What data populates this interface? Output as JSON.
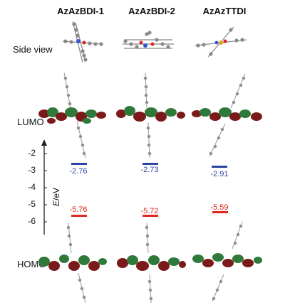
{
  "header": {
    "columns": [
      "AzAzBDI-1",
      "AzAzBDI-2",
      "AzAzTTDI"
    ]
  },
  "rows": {
    "side_view": "Side view",
    "lumo": "LUMO",
    "homo": "HOMO"
  },
  "axis": {
    "label_italic": "E",
    "label_rest": "/eV",
    "ticks": [
      "-2",
      "-3",
      "-4",
      "-5",
      "-6"
    ]
  },
  "energies": {
    "lumo": [
      "-2.76",
      "-2.73",
      "-2.91"
    ],
    "homo": [
      "-5.76",
      "-5.72",
      "-5.59"
    ],
    "lumo_color": "#2b45a3",
    "homo_color": "#e0281e"
  },
  "colors": {
    "orbital_green": "#2f7a3a",
    "orbital_red": "#7a1a1a",
    "atom_gray": "#8a8a8a"
  }
}
